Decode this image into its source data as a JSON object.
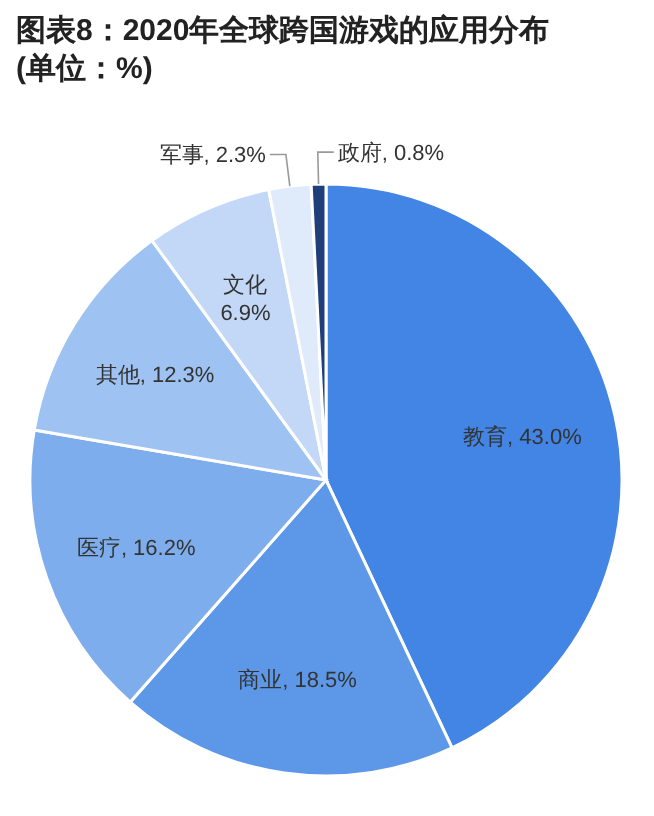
{
  "chart_data": {
    "type": "pie",
    "title": "图表8：2020年全球跨国游戏的应用分布\n(单位：%)",
    "categories": [
      "教育",
      "商业",
      "医疗",
      "其他",
      "文化",
      "军事",
      "政府"
    ],
    "values": [
      43.0,
      18.5,
      16.2,
      12.3,
      6.9,
      2.3,
      0.8
    ],
    "value_labels": [
      "43.0%",
      "18.5%",
      "16.2%",
      "12.3%",
      "6.9%",
      "2.3%",
      "0.8%"
    ],
    "colors": [
      "#4285e4",
      "#5d98e8",
      "#7dadec",
      "#9ec2f1",
      "#c2d8f6",
      "#dfeafb",
      "#1f3f7a"
    ]
  }
}
